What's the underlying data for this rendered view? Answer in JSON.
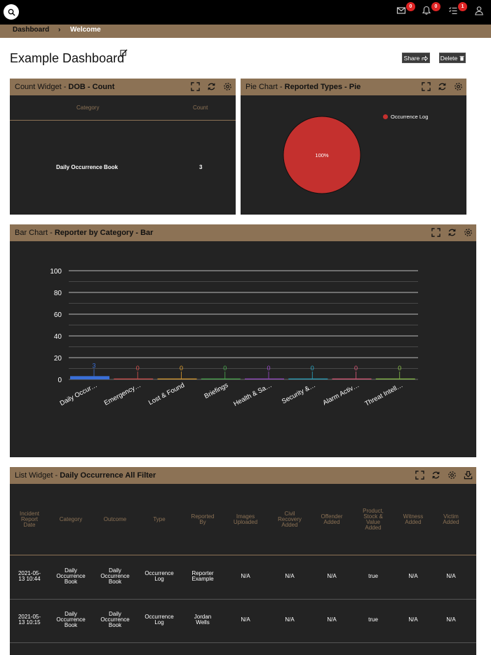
{
  "topbar": {
    "icons": [
      {
        "name": "mail-icon",
        "badge": "0"
      },
      {
        "name": "bell-icon",
        "badge": "0"
      },
      {
        "name": "tasks-icon",
        "badge": "1"
      },
      {
        "name": "user-icon",
        "badge": null
      }
    ]
  },
  "breadcrumb": {
    "items": [
      "Dashboard",
      "Welcome"
    ],
    "separator": "›"
  },
  "page": {
    "title": "Example Dashboard",
    "share_label": "Share",
    "delete_label": "Delete"
  },
  "count_widget": {
    "title_prefix": "Count Widget - ",
    "title_bold": "DOB - Count",
    "columns": [
      "Category",
      "Count"
    ],
    "rows": [
      {
        "category": "Daily Occurrence Book",
        "count": "3"
      }
    ]
  },
  "pie_widget": {
    "title_prefix": "Pie Chart - ",
    "title_bold": "Reported Types - Pie",
    "legend": "Occurrence Log",
    "label": "100%"
  },
  "bar_widget": {
    "title_prefix": "Bar Chart - ",
    "title_bold": "Reporter by Category - Bar"
  },
  "chart_data": {
    "type": "bar",
    "categories": [
      "Daily Occur…",
      "Emergency…",
      "Lost & Found",
      "Briefings",
      "Health & Sa…",
      "Security &…",
      "Alarm Activ…",
      "Threat Intell…"
    ],
    "values": [
      3,
      0,
      0,
      0,
      0,
      0,
      0,
      0
    ],
    "value_labels": [
      "3",
      "0",
      "0",
      "0",
      "0",
      "0",
      "0",
      "0"
    ],
    "colors": [
      "#3a6fd8",
      "#d9534f",
      "#e0a030",
      "#4caf50",
      "#9c4dcc",
      "#2aa8c4",
      "#e05a7a",
      "#8bc34a"
    ],
    "yticks": [
      "100",
      "80",
      "60",
      "40",
      "20",
      "0"
    ],
    "ylim": [
      0,
      100
    ],
    "grid": true
  },
  "list_widget": {
    "title_prefix": "List Widget - ",
    "title_bold": "Daily Occurrence All Filter",
    "columns": [
      "Incident Report Date",
      "Category",
      "Outcome",
      "Type",
      "Reported By",
      "Images Uploaded",
      "Civil Recovery Added",
      "Offender Added",
      "Product, Stock & Value Added",
      "Witness Added",
      "Victim Added"
    ],
    "rows": [
      [
        "2021-05-13 10:44",
        "Daily Occurrence Book",
        "Daily Occurrence Book",
        "Occurrence Log",
        "Reporter Example",
        "N/A",
        "N/A",
        "N/A",
        "true",
        "N/A",
        "N/A"
      ],
      [
        "2021-05-13 10:15",
        "Daily Occurrence Book",
        "Daily Occurrence Book",
        "Occurrence Log",
        "Jordan Wells",
        "N/A",
        "N/A",
        "N/A",
        "true",
        "N/A",
        "N/A"
      ]
    ]
  }
}
